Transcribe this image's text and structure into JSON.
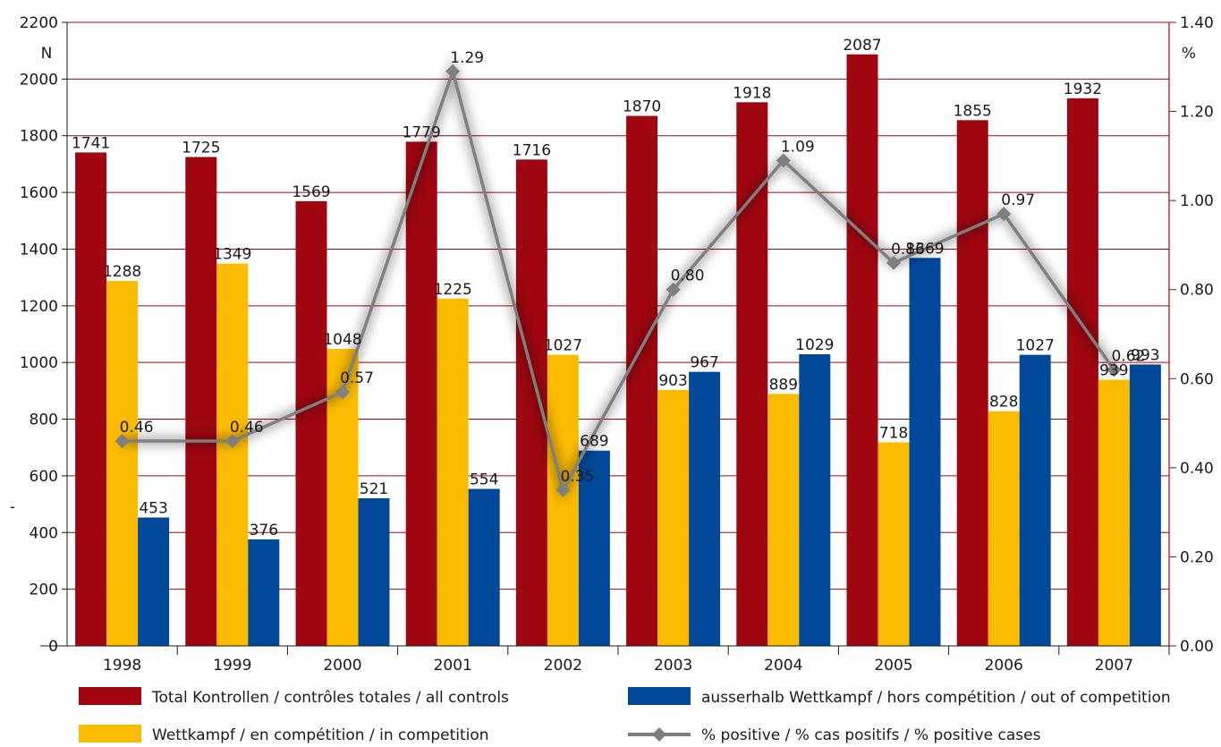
{
  "chart_data": {
    "type": "bar",
    "categories": [
      "1998",
      "1999",
      "2000",
      "2001",
      "2002",
      "2003",
      "2004",
      "2005",
      "2006",
      "2007"
    ],
    "series": [
      {
        "name": "Total Kontrollen / contrôles totales / all controls",
        "type": "bar",
        "axis": "left",
        "color": "#a0060f",
        "values": [
          1741,
          1725,
          1569,
          1779,
          1716,
          1870,
          1918,
          2087,
          1855,
          1932
        ]
      },
      {
        "name": "Wettkampf / en compétition / in competition",
        "type": "bar",
        "axis": "left",
        "color": "#fbbc00",
        "values": [
          1288,
          1349,
          1048,
          1225,
          1027,
          903,
          889,
          718,
          828,
          939
        ]
      },
      {
        "name": "ausserhalb Wettkampf / hors compétition / out of competition",
        "type": "bar",
        "axis": "left",
        "color": "#004899",
        "values": [
          453,
          376,
          521,
          554,
          689,
          967,
          1029,
          1369,
          1027,
          993
        ]
      },
      {
        "name": "% positive / % cas positifs / % positive cases",
        "type": "line",
        "axis": "right",
        "color": "#7f7f7f",
        "values": [
          0.46,
          0.46,
          0.57,
          1.29,
          0.35,
          0.8,
          1.09,
          0.86,
          0.97,
          0.62
        ],
        "labels": [
          "0.46",
          "0.46",
          "0.57",
          "1.29",
          "0.35",
          "0.80",
          "1.09",
          "0.86",
          "0.97",
          "0.62"
        ]
      }
    ],
    "ylabel_left": "N",
    "ylabel_right": "%",
    "ylim_left": [
      0,
      2200
    ],
    "ylim_right": [
      0,
      1.4
    ],
    "yticks_left": [
      "0",
      "200",
      "400",
      "600",
      "800",
      "1000",
      "1200",
      "1400",
      "1600",
      "1800",
      "2000",
      "2200"
    ],
    "yticks_right": [
      "0.00",
      "0.20",
      "0.40",
      "0.60",
      "0.80",
      "1.00",
      "1.20",
      "1.40"
    ],
    "left_axis_stray_mark": "-",
    "grid": true,
    "grid_color": "#a0060f",
    "legend_position": "bottom"
  }
}
